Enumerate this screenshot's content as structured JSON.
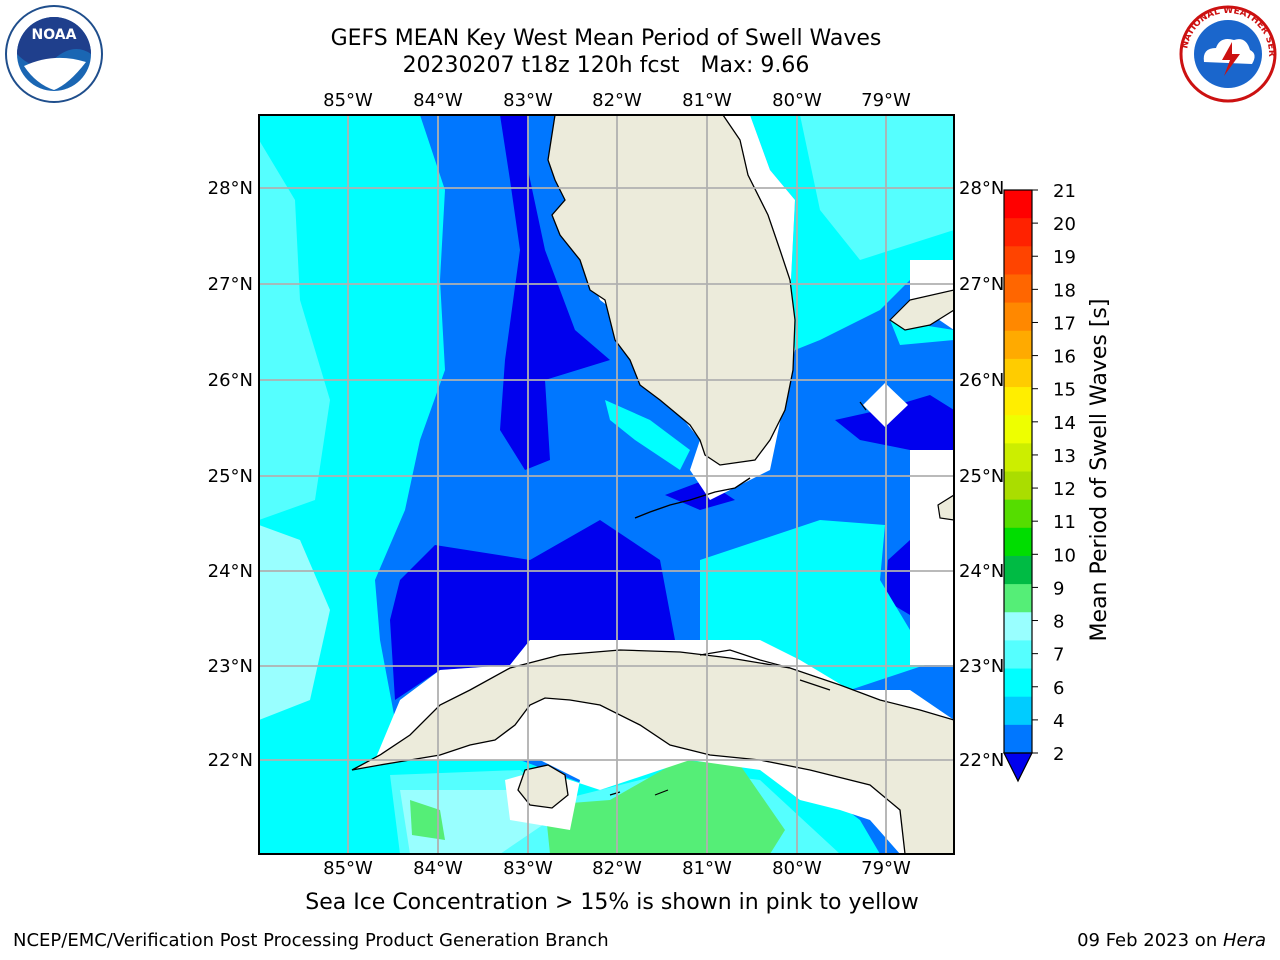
{
  "header": {
    "title_line1": "GEFS MEAN Key West Mean Period of Swell Waves",
    "title_line2_date": "20230207 t18z 120h fcst",
    "title_line2_max": "Max: 9.66"
  },
  "map": {
    "region": "Key West",
    "lon_labels": [
      "85°W",
      "84°W",
      "83°W",
      "82°W",
      "81°W",
      "80°W",
      "79°W"
    ],
    "lat_labels": [
      "28°N",
      "27°N",
      "26°N",
      "25°N",
      "24°N",
      "23°N",
      "22°N"
    ],
    "colors": {
      "land": "#ecebdb",
      "ice_mask": "#ffffff",
      "grid": "#b0b0b0"
    }
  },
  "colorbar": {
    "label": "Mean Period of Swell Waves [s]",
    "ticks": [
      "21",
      "20",
      "19",
      "18",
      "17",
      "16",
      "15",
      "14",
      "13",
      "12",
      "11",
      "10",
      "9",
      "8",
      "7",
      "6",
      "4",
      "2"
    ],
    "colors": [
      "#ff0000",
      "#ff2200",
      "#ff4400",
      "#ff6600",
      "#ff8800",
      "#ffaa00",
      "#ffcc00",
      "#ffee00",
      "#eeff00",
      "#ccee00",
      "#aadd00",
      "#55dd00",
      "#00dd00",
      "#00bb44",
      "#55ee77",
      "#99ffff",
      "#55ffff",
      "#00ffff",
      "#00ccff",
      "#0077ff"
    ],
    "extend_color": "#0000ee"
  },
  "caption": "Sea Ice Concentration > 15% is shown in pink to yellow",
  "footer": {
    "left": "NCEP/EMC/Verification Post Processing Product Generation Branch",
    "right_date": "09 Feb 2023 on ",
    "right_host": "Hera"
  },
  "logos": {
    "noaa": "NOAA",
    "nws_ring": "NATIONAL WEATHER SERVICE"
  }
}
